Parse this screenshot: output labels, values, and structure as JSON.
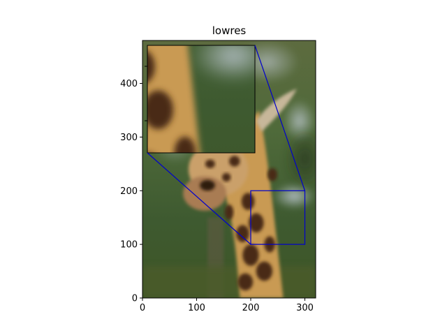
{
  "chart_data": {
    "type": "image",
    "title": "lowres",
    "xlim": [
      0,
      320
    ],
    "ylim": [
      0,
      480
    ],
    "xticks": [
      0,
      100,
      200,
      300
    ],
    "yticks": [
      0,
      100,
      200,
      300,
      400
    ],
    "image_description": "giraffe-photo",
    "zoom_region": {
      "x0": 200,
      "x1": 300,
      "y0": 100,
      "y1": 200
    },
    "inset": {
      "position": "upper-left",
      "shows_region": "zoom_region"
    },
    "indicator_color": "#0000cc"
  }
}
